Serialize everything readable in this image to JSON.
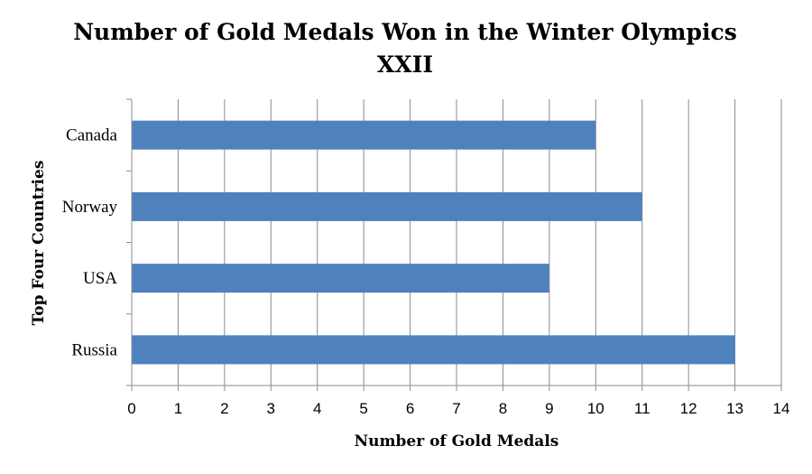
{
  "chart_data": {
    "type": "bar",
    "orientation": "horizontal",
    "title": "Number of Gold Medals Won in the Winter Olympics",
    "subtitle": "XXII",
    "xlabel": "Number of Gold Medals",
    "ylabel": "Top Four Countries",
    "categories": [
      "Canada",
      "Norway",
      "USA",
      "Russia"
    ],
    "values": [
      10,
      11,
      9,
      13
    ],
    "xlim": [
      0,
      14
    ],
    "xticks": [
      "0",
      "1",
      "2",
      "3",
      "4",
      "5",
      "6",
      "7",
      "8",
      "9",
      "10",
      "11",
      "12",
      "13",
      "14"
    ],
    "grid": "vertical",
    "legend": "none",
    "bar_color": "#4f81bd",
    "grid_color": "#8c8c8c"
  }
}
